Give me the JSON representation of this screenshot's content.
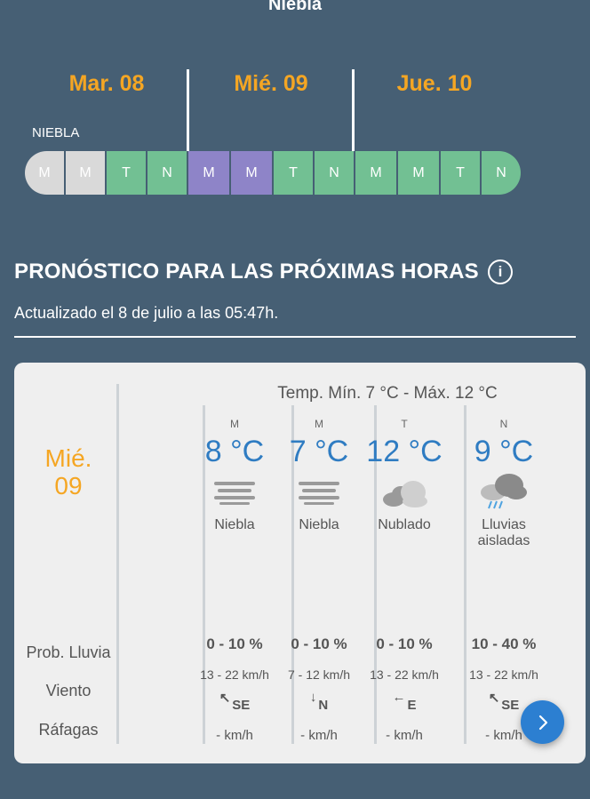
{
  "top_label": "Niebla",
  "days": [
    "Mar. 08",
    "Mié. 09",
    "Jue. 10"
  ],
  "bar_label": "NIEBLA",
  "segments": [
    {
      "label": "M",
      "color": "gray"
    },
    {
      "label": "M",
      "color": "gray"
    },
    {
      "label": "T",
      "color": "green"
    },
    {
      "label": "N",
      "color": "green"
    },
    {
      "label": "M",
      "color": "purple"
    },
    {
      "label": "M",
      "color": "purple"
    },
    {
      "label": "T",
      "color": "green"
    },
    {
      "label": "N",
      "color": "green"
    },
    {
      "label": "M",
      "color": "green"
    },
    {
      "label": "M",
      "color": "green"
    },
    {
      "label": "T",
      "color": "green"
    },
    {
      "label": "N",
      "color": "green"
    }
  ],
  "section": {
    "title": "PRONÓSTICO PARA LAS PRÓXIMAS HORAS",
    "info_icon": "i",
    "updated": "Actualizado el 8 de julio a las 05:47h."
  },
  "card": {
    "day_line1": "Mié.",
    "day_line2": "09",
    "temp_range": "Temp. Mín. 7 °C - Máx. 12 °C",
    "labels": {
      "rain": "Prob. Lluvia",
      "wind": "Viento",
      "gusts": "Ráfagas"
    },
    "periods": [
      {
        "period": "M",
        "temp": "8 °C",
        "icon": "fog-icon",
        "desc": "Niebla",
        "rain": "0 - 10 %",
        "wind": "13 - 22 km/h",
        "arrow": "↖",
        "dir": "SE",
        "gust": "-  km/h"
      },
      {
        "period": "M",
        "temp": "7 °C",
        "icon": "fog-icon",
        "desc": "Niebla",
        "rain": "0 - 10 %",
        "wind": "7 - 12 km/h",
        "arrow": "↓",
        "dir": "N",
        "gust": "-  km/h"
      },
      {
        "period": "T",
        "temp": "12 °C",
        "icon": "cloudy-icon",
        "desc": "Nublado",
        "rain": "0 - 10 %",
        "wind": "13 - 22 km/h",
        "arrow": "←",
        "dir": "E",
        "gust": "-  km/h"
      },
      {
        "period": "N",
        "temp": "9 °C",
        "icon": "rain-cloud-icon",
        "desc": "Lluvias aisladas",
        "rain": "10 - 40 %",
        "wind": "13 - 22 km/h",
        "arrow": "↖",
        "dir": "SE",
        "gust": "-  km/h"
      }
    ]
  },
  "colors": {
    "background": "#465f74",
    "accent": "#f5a623",
    "temp": "#2f7cc2",
    "green": "#72c093",
    "purple": "#8e84c8",
    "gray": "#d9d9d9",
    "button": "#2c7fd1"
  }
}
